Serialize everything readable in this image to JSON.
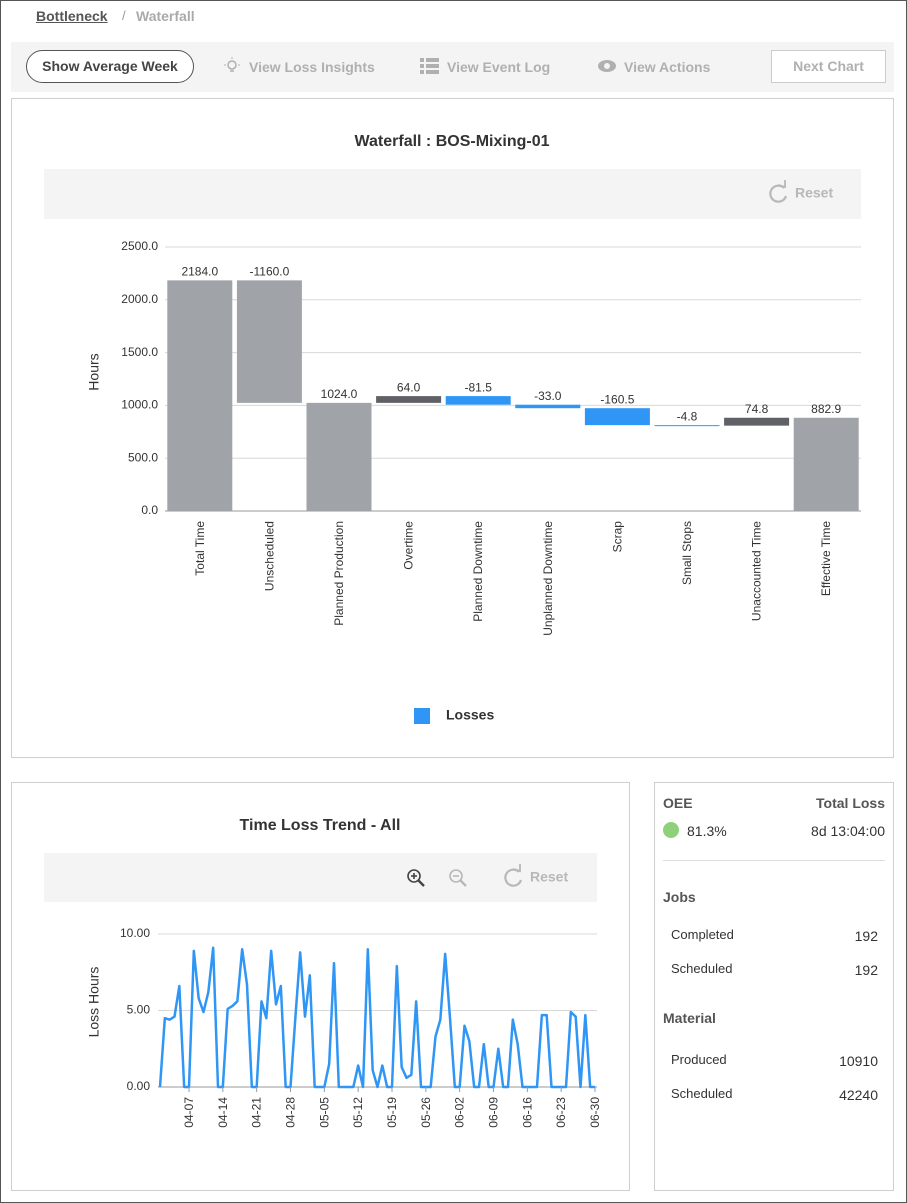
{
  "breadcrumb": {
    "parent": "Bottleneck",
    "current": "Waterfall"
  },
  "toolbar": {
    "average_week": "Show Average Week",
    "loss_insights": "View Loss Insights",
    "event_log": "View Event Log",
    "actions": "View Actions",
    "next_chart": "Next Chart"
  },
  "chart_data": [
    {
      "type": "waterfall",
      "title": "Waterfall : BOS-Mixing-01",
      "reset": "Reset",
      "ylabel": "Hours",
      "categories": [
        "Total Time",
        "Unscheduled",
        "Planned Production",
        "Overtime",
        "Planned Downtime",
        "Unplanned Downtime",
        "Scrap",
        "Small Stops",
        "Unaccounted Time",
        "Effective Time"
      ],
      "values": [
        2184.0,
        -1160.0,
        1024.0,
        64.0,
        -81.5,
        -33.0,
        -160.5,
        -4.8,
        74.8,
        882.9
      ],
      "value_labels": [
        "2184.0",
        "-1160.0",
        "1024.0",
        "64.0",
        "-81.5",
        "-33.0",
        "-160.5",
        "-4.8",
        "74.8",
        "882.9"
      ],
      "totals": [
        true,
        false,
        true,
        false,
        false,
        false,
        false,
        false,
        false,
        true
      ],
      "colors": [
        "#a0a3a8",
        "#a0a3a8",
        "#a0a3a8",
        "#5f6166",
        "#2f96f5",
        "#2f96f5",
        "#2f96f5",
        "#2f96f5",
        "#5f6166",
        "#a0a3a8"
      ],
      "ylim": [
        0,
        2500
      ],
      "yticks": [
        {
          "value": 0,
          "label": "0.0"
        },
        {
          "value": 500,
          "label": "500.0"
        },
        {
          "value": 1000,
          "label": "1000.0"
        },
        {
          "value": 1500,
          "label": "1500.0"
        },
        {
          "value": 2000,
          "label": "2000.0"
        },
        {
          "value": 2500,
          "label": "2500.0"
        }
      ],
      "grid": true,
      "legend": {
        "label": "Losses",
        "color": "#2f96f5"
      }
    },
    {
      "type": "line",
      "title": "Time Loss Trend - All",
      "reset": "Reset",
      "ylabel": "Loss Hours",
      "color": "#2f96f5",
      "categories": [
        null,
        null,
        null,
        null,
        null,
        null,
        "04-07",
        null,
        null,
        null,
        null,
        null,
        null,
        "04-14",
        null,
        null,
        null,
        null,
        null,
        null,
        "04-21",
        null,
        null,
        null,
        null,
        null,
        null,
        "04-28",
        null,
        null,
        null,
        null,
        null,
        null,
        "05-05",
        null,
        null,
        null,
        null,
        null,
        null,
        "05-12",
        null,
        null,
        null,
        null,
        null,
        null,
        "05-19",
        null,
        null,
        null,
        null,
        null,
        null,
        "05-26",
        null,
        null,
        null,
        null,
        null,
        null,
        "06-02",
        null,
        null,
        null,
        null,
        null,
        null,
        "06-09",
        null,
        null,
        null,
        null,
        null,
        null,
        "06-16",
        null,
        null,
        null,
        null,
        null,
        null,
        "06-23",
        null,
        null,
        null,
        null,
        null,
        null,
        "06-30"
      ],
      "values": [
        0.0,
        4.5,
        4.4,
        4.6,
        6.6,
        0.0,
        0.0,
        8.9,
        5.8,
        4.9,
        6.2,
        9.1,
        0.0,
        0.0,
        5.1,
        5.3,
        5.6,
        9.0,
        6.7,
        0.0,
        0.0,
        5.6,
        4.5,
        8.9,
        5.4,
        6.6,
        0.0,
        0.0,
        4.5,
        8.8,
        4.6,
        7.3,
        0.0,
        0.0,
        0.0,
        1.5,
        8.1,
        0.0,
        0.0,
        0.0,
        0.0,
        1.4,
        0.0,
        9.0,
        1.1,
        0.0,
        1.4,
        0.0,
        0.0,
        7.9,
        1.3,
        0.6,
        0.8,
        5.6,
        0.0,
        0.0,
        0.0,
        3.3,
        4.4,
        8.7,
        4.5,
        0.0,
        0.0,
        4.0,
        3.0,
        0.0,
        0.0,
        2.8,
        0.0,
        0.0,
        2.5,
        0.0,
        0.0,
        4.4,
        2.8,
        0.0,
        0.0,
        0.0,
        0.0,
        4.7,
        4.7,
        0.0,
        0.0,
        0.0,
        0.0,
        4.9,
        4.6,
        0.0,
        4.7,
        0.0,
        0.0
      ],
      "ylim": [
        0,
        10
      ],
      "yticks": [
        {
          "value": 0,
          "label": "0.00"
        },
        {
          "value": 5,
          "label": "5.00"
        },
        {
          "value": 10,
          "label": "10.00"
        }
      ],
      "grid": true
    }
  ],
  "summary": {
    "oee_label": "OEE",
    "oee_value": "81.3%",
    "oee_color": "#8fd17a",
    "total_loss_label": "Total Loss",
    "total_loss_value": "8d 13:04:00",
    "jobs": {
      "title": "Jobs",
      "rows": [
        {
          "label": "Completed",
          "value": 192
        },
        {
          "label": "Scheduled",
          "value": 192
        }
      ]
    },
    "material": {
      "title": "Material",
      "rows": [
        {
          "label": "Produced",
          "value": 10910
        },
        {
          "label": "Scheduled",
          "value": 42240
        }
      ]
    }
  }
}
